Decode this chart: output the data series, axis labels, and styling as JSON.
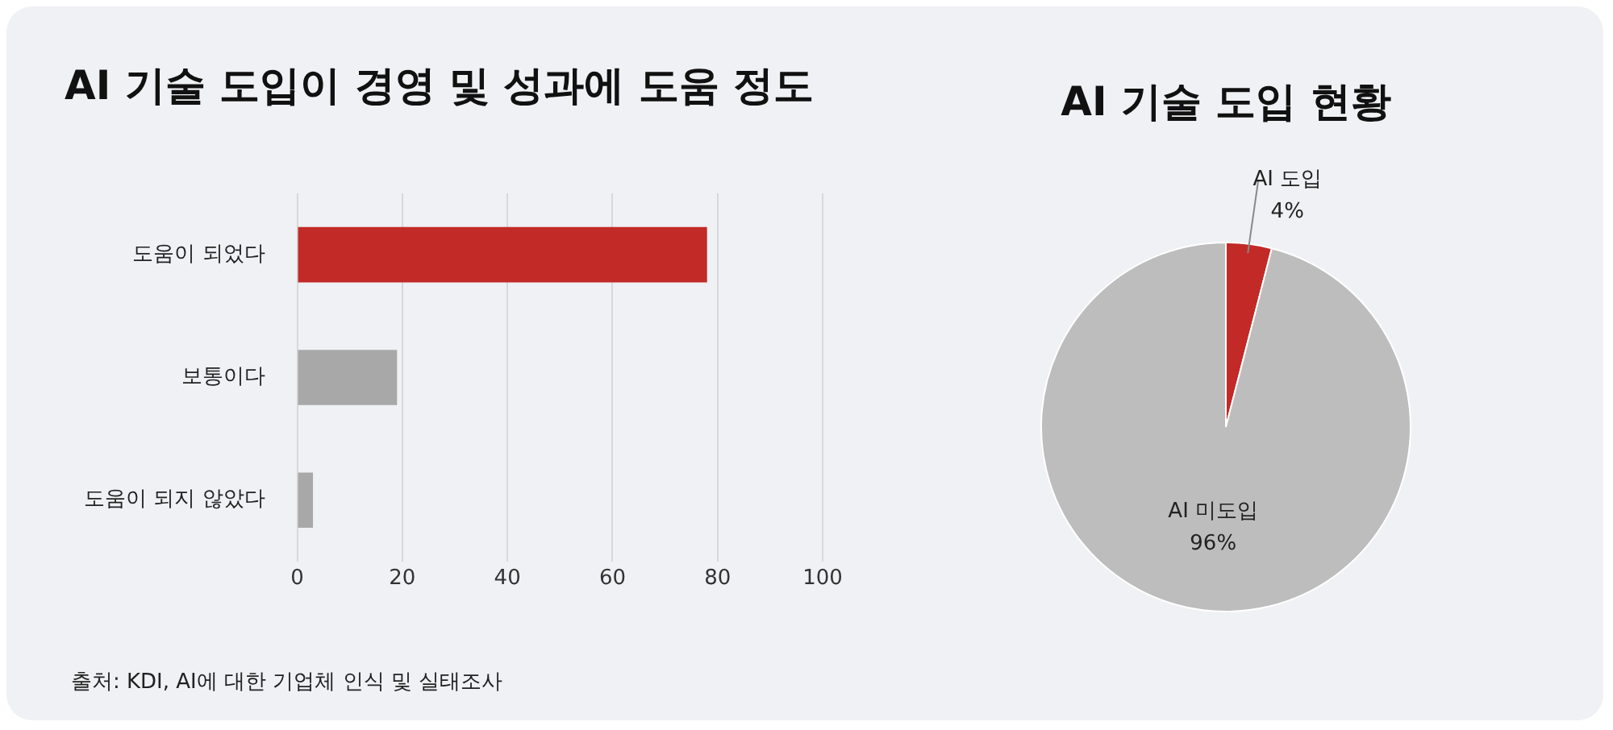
{
  "chart_data": [
    {
      "type": "bar",
      "orientation": "horizontal",
      "title": "AI 기술 도입이 경영 및 성과에 도움 정도",
      "categories": [
        "도움이 되었다",
        "보통이다",
        "도움이 되지 않았다"
      ],
      "values": [
        78,
        19,
        3
      ],
      "colors": [
        "#c22a27",
        "#a8a8a8",
        "#a8a8a8"
      ],
      "xlim": [
        0,
        100
      ],
      "xticks": [
        0,
        20,
        40,
        60,
        80,
        100
      ],
      "grid": "x",
      "legend": false,
      "annotations": [
        "출처: KDI, AI에 대한 기업체 인식 및 실태조사"
      ]
    },
    {
      "type": "pie",
      "title": "AI 기술 도입 현황",
      "categories": [
        "AI 도입",
        "AI 미도입"
      ],
      "values": [
        4,
        96
      ],
      "colors": [
        "#c22a27",
        "#bdbdbd"
      ],
      "value_labels": [
        "4%",
        "96%"
      ],
      "legend": false
    }
  ]
}
